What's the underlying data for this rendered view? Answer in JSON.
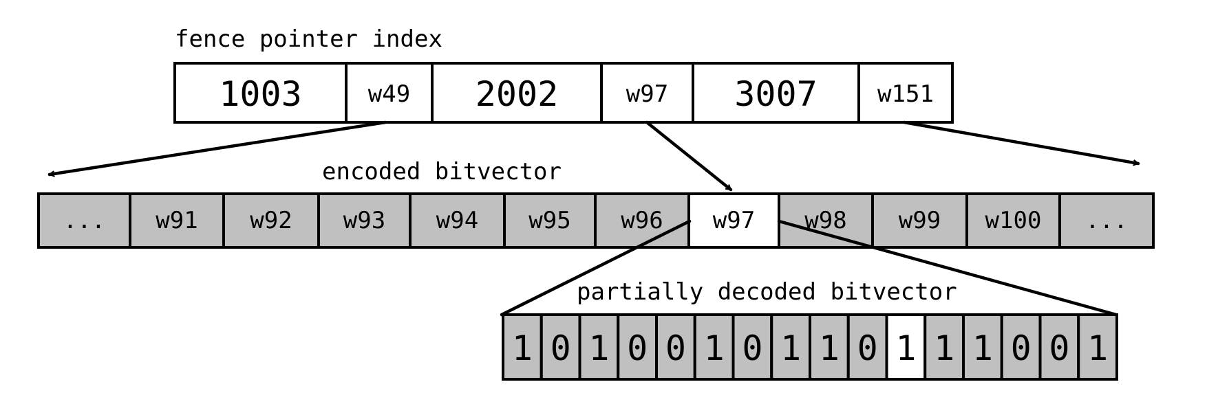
{
  "labels": {
    "fence_index": "fence pointer index",
    "encoded": "encoded bitvector",
    "decoded": "partially decoded bitvector"
  },
  "fence_index": [
    {
      "key": "1003",
      "pointer": "w49"
    },
    {
      "key": "2002",
      "pointer": "w97"
    },
    {
      "key": "3007",
      "pointer": "w151"
    }
  ],
  "encoded_words": [
    "...",
    "w91",
    "w92",
    "w93",
    "w94",
    "w95",
    "w96",
    "w97",
    "w98",
    "w99",
    "w100",
    "..."
  ],
  "highlighted_word": "w97",
  "decoded_bits": [
    "1",
    "0",
    "1",
    "0",
    "0",
    "1",
    "0",
    "1",
    "1",
    "0",
    "1",
    "1",
    "1",
    "0",
    "0",
    "1"
  ],
  "highlighted_bit_index": 10,
  "colors": {
    "cell_fill": "#c0c0c0",
    "highlight_fill": "#ffffff",
    "stroke": "#000000"
  }
}
